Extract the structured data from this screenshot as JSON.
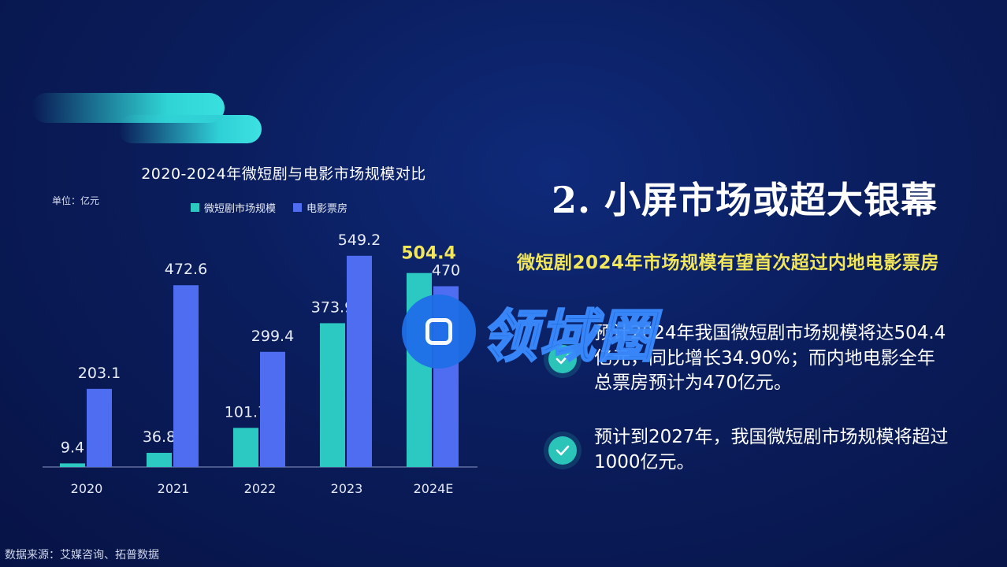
{
  "chart_data": {
    "type": "bar",
    "title": "2020-2024年微短剧与电影市场规模对比",
    "unit_label": "单位：亿元",
    "categories": [
      "2020",
      "2021",
      "2022",
      "2023",
      "2024E"
    ],
    "series": [
      {
        "name": "微短剧市场规模",
        "color": "#2cc9c2",
        "values": [
          9.4,
          36.8,
          101.7,
          373.9,
          504.4
        ],
        "labels": [
          "9.4",
          "36.8",
          "101.7",
          "373.9",
          "504.4"
        ]
      },
      {
        "name": "电影票房",
        "color": "#4e6df0",
        "values": [
          203.1,
          472.6,
          299.4,
          549.2,
          470
        ],
        "labels": [
          "203.1",
          "472.6",
          "299.4",
          "549.2",
          "470"
        ]
      }
    ],
    "highlight_color": "#f2e65a",
    "ylim": [
      0,
      600
    ],
    "grid": false,
    "legend_position": "top"
  },
  "source": "数据来源：艾媒咨询、拓普数据",
  "heading": "2. 小屏市场或超大银幕",
  "subheading": "微短剧2024年市场规模有望首次超过内地电影票房",
  "bullets": [
    "预计2024年我国微短剧市场规模将达504.4亿元，同比增长34.90%；而内地电影全年总票房预计为470亿元。",
    "预计到2027年，我国微短剧市场规模将超过1000亿元。"
  ],
  "watermark": "领域圈",
  "colors": {
    "background": "#0a1d5c",
    "accent_teal": "#2cc9c2",
    "accent_blue": "#4e6df0",
    "highlight": "#f2e65a"
  }
}
